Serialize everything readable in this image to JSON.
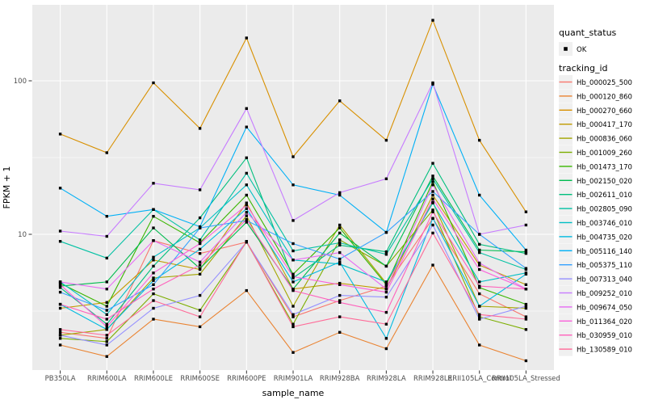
{
  "figure": {
    "y_axis": {
      "title": "FPKM + 1",
      "tick_labels": [
        "100",
        "10"
      ]
    },
    "x_axis": {
      "title": "sample_name"
    },
    "legend": {
      "quant_status": {
        "title": "quant_status",
        "items": [
          {
            "label": "OK"
          }
        ]
      },
      "tracking_id": {
        "title": "tracking_id"
      }
    },
    "colors": {
      "panel_background": "#EBEBEB",
      "gridline": "#FFFFFF",
      "tick_text": "#4D4D4D",
      "axis_tick": "#333333",
      "marker": "#000000",
      "legend_key_background": "#F0F0F0"
    }
  },
  "chart_data": {
    "type": "line",
    "title": "",
    "xlabel": "sample_name",
    "ylabel": "FPKM + 1",
    "y_scale": "log10",
    "ylim": [
      1.3,
      320
    ],
    "y_ticks": [
      10,
      100
    ],
    "grid": true,
    "legend_position": "right",
    "marker_shape": "filled-black-square",
    "quant_status": "OK",
    "categories": [
      "PB350LA",
      "RRIM600LA",
      "RRIM600LE",
      "RRIM600SE",
      "RRIM600PE",
      "RRIM901LA",
      "RRIM928BA",
      "RRIM928LA",
      "RRIM928LE",
      "RRII105LA_Control",
      "RRII105LA_Stressed"
    ],
    "series": [
      {
        "name": "Hb_000025_500",
        "color": "#F8766D",
        "values": [
          2.3,
          2.1,
          9.1,
          7.5,
          8.9,
          2.9,
          3.7,
          4.6,
          12.7,
          4.1,
          2.9
        ]
      },
      {
        "name": "Hb_000120_860",
        "color": "#EA8331",
        "values": [
          1.9,
          1.6,
          2.8,
          2.5,
          4.3,
          1.7,
          2.3,
          1.8,
          6.3,
          1.9,
          1.5
        ]
      },
      {
        "name": "Hb_000270_660",
        "color": "#D89000",
        "values": [
          45,
          34,
          97,
          49,
          190,
          32,
          74,
          41,
          248,
          41,
          14
        ]
      },
      {
        "name": "Hb_000417_170",
        "color": "#C09B00",
        "values": [
          3.3,
          3.6,
          6.8,
          5.9,
          16,
          4.4,
          4.8,
          4.4,
          18,
          6.3,
          4.7
        ]
      },
      {
        "name": "Hb_000836_060",
        "color": "#A3A500",
        "values": [
          2.2,
          2.4,
          5.2,
          5.5,
          13.2,
          3.4,
          11.5,
          4.8,
          16.2,
          3.4,
          3.3
        ]
      },
      {
        "name": "Hb_001009_260",
        "color": "#7CAE00",
        "values": [
          2.1,
          2.0,
          4.1,
          3.2,
          8.9,
          2.6,
          9.2,
          6.2,
          14.4,
          2.9,
          2.4
        ]
      },
      {
        "name": "Hb_001473_170",
        "color": "#39B600",
        "values": [
          4.8,
          3.4,
          13.1,
          8.8,
          18,
          5.5,
          11.0,
          4.7,
          22,
          4.5,
          3.5
        ]
      },
      {
        "name": "Hb_002150_020",
        "color": "#00BB4E",
        "values": [
          4.6,
          4.9,
          11.0,
          6.0,
          12.0,
          4.4,
          10.2,
          6.2,
          24,
          7.9,
          7.7
        ]
      },
      {
        "name": "Hb_002611_010",
        "color": "#00BF7D",
        "values": [
          4.5,
          2.6,
          6.2,
          12.8,
          31.5,
          5.2,
          8.5,
          7.7,
          29,
          8.6,
          7.5
        ]
      },
      {
        "name": "Hb_002805_090",
        "color": "#00C1A3",
        "values": [
          9.0,
          7.0,
          14.5,
          9.2,
          25,
          7.8,
          8.8,
          7.4,
          23,
          7.6,
          5.9
        ]
      },
      {
        "name": "Hb_003746_010",
        "color": "#00BFC4",
        "values": [
          4.9,
          3.0,
          7.1,
          11.0,
          21,
          6.8,
          6.4,
          4.9,
          16,
          4.9,
          5.6
        ]
      },
      {
        "name": "Hb_004735_020",
        "color": "#00BAE0",
        "values": [
          3.5,
          2.4,
          5.0,
          8.0,
          14.7,
          4.9,
          6.6,
          2.1,
          12.7,
          3.4,
          5.5
        ]
      },
      {
        "name": "Hb_005116_140",
        "color": "#00B0F6",
        "values": [
          20,
          13.1,
          14.5,
          11.2,
          50,
          21,
          18,
          10.3,
          95,
          18,
          7.9
        ]
      },
      {
        "name": "Hb_005375_110",
        "color": "#35A2FF",
        "values": [
          4.2,
          3.2,
          4.7,
          11.0,
          12.3,
          8.7,
          6.9,
          10.3,
          19,
          10.0,
          6.0
        ]
      },
      {
        "name": "Hb_007313_040",
        "color": "#9590FF",
        "values": [
          2.2,
          1.9,
          3.3,
          4.0,
          8.9,
          3.0,
          4.0,
          3.9,
          11.5,
          2.8,
          3.4
        ]
      },
      {
        "name": "Hb_009252_010",
        "color": "#C77CFF",
        "values": [
          10.5,
          9.7,
          21.5,
          19.5,
          66,
          12.3,
          18.7,
          23,
          97,
          10.0,
          11.5
        ]
      },
      {
        "name": "Hb_009674_050",
        "color": "#E76BF3",
        "values": [
          4.9,
          4.4,
          9.1,
          6.6,
          13.9,
          6.8,
          7.6,
          4.4,
          21,
          6.5,
          4.4
        ]
      },
      {
        "name": "Hb_011364_020",
        "color": "#FA62DB",
        "values": [
          4.7,
          2.5,
          5.6,
          8.7,
          15.5,
          5.3,
          4.7,
          4.2,
          17,
          5.9,
          4.4
        ]
      },
      {
        "name": "Hb_030959_010",
        "color": "#FF62BC",
        "values": [
          3.5,
          2.8,
          4.4,
          6.3,
          12.5,
          4.3,
          3.6,
          3.1,
          14,
          4.6,
          4.4
        ]
      },
      {
        "name": "Hb_130589_010",
        "color": "#FF6A98",
        "values": [
          2.4,
          2.2,
          3.7,
          2.9,
          9.0,
          2.5,
          2.9,
          2.6,
          10.2,
          3.0,
          2.8
        ]
      }
    ]
  }
}
